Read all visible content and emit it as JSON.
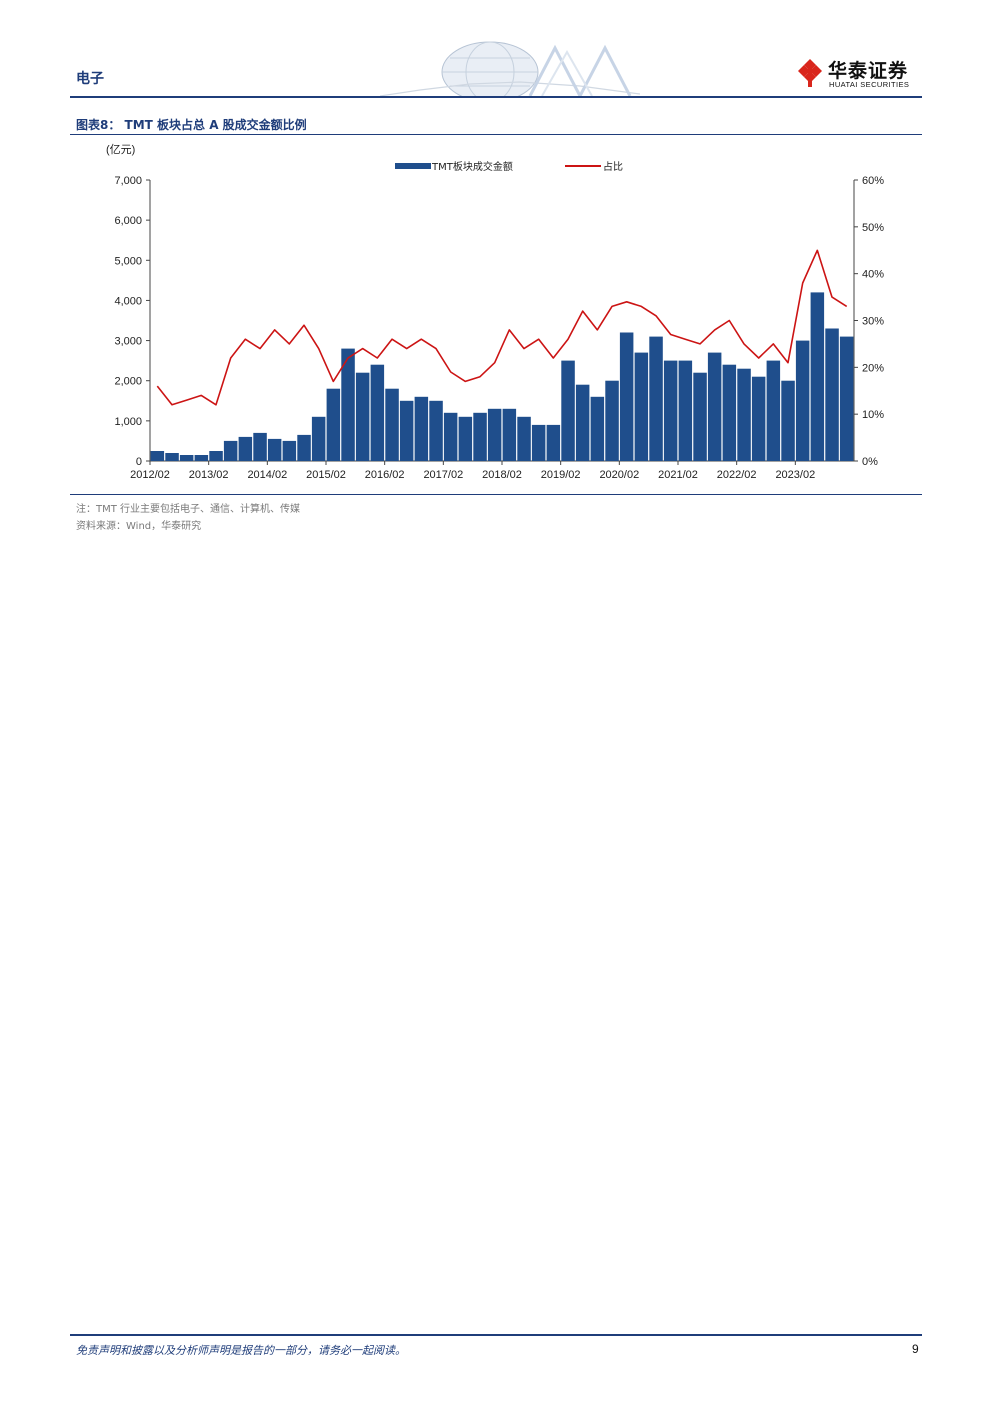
{
  "header": {
    "section": "电子",
    "brand_cn": "华泰证券",
    "brand_en": "HUATAI SECURITIES"
  },
  "figure": {
    "title": "图表8： TMT 板块占总 A 股成交金额比例",
    "note": "注：TMT 行业主要包括电子、通信、计算机、传媒",
    "source": "资料来源：Wind，华泰研究"
  },
  "chart_data": {
    "type": "bar+line",
    "y_unit": "(亿元)",
    "ylim": [
      0,
      7000
    ],
    "y2lim": [
      0,
      0.6
    ],
    "y_ticks": [
      "0",
      "1,000",
      "2,000",
      "3,000",
      "4,000",
      "5,000",
      "6,000",
      "7,000"
    ],
    "y2_ticks": [
      "0%",
      "10%",
      "20%",
      "30%",
      "40%",
      "50%",
      "60%"
    ],
    "x_ticks": [
      "2012/02",
      "2013/02",
      "2014/02",
      "2015/02",
      "2016/02",
      "2017/02",
      "2018/02",
      "2019/02",
      "2020/02",
      "2021/02",
      "2022/02",
      "2023/02"
    ],
    "legend_position": "top",
    "series": [
      {
        "name": "TMT板块成交金额",
        "kind": "bar",
        "axis": "left",
        "color": "#1f4e8c",
        "x": [
          "2012/02",
          "2012/05",
          "2012/08",
          "2012/11",
          "2013/02",
          "2013/05",
          "2013/08",
          "2013/11",
          "2014/02",
          "2014/05",
          "2014/08",
          "2014/11",
          "2015/02",
          "2015/05",
          "2015/08",
          "2015/11",
          "2016/02",
          "2016/05",
          "2016/08",
          "2016/11",
          "2017/02",
          "2017/05",
          "2017/08",
          "2017/11",
          "2018/02",
          "2018/05",
          "2018/08",
          "2018/11",
          "2019/02",
          "2019/05",
          "2019/08",
          "2019/11",
          "2020/02",
          "2020/05",
          "2020/08",
          "2020/11",
          "2021/02",
          "2021/05",
          "2021/08",
          "2021/11",
          "2022/02",
          "2022/05",
          "2022/08",
          "2022/11",
          "2023/02",
          "2023/05",
          "2023/08",
          "2023/11"
        ],
        "values": [
          250,
          200,
          150,
          150,
          250,
          500,
          600,
          700,
          550,
          500,
          650,
          1100,
          1800,
          2800,
          2200,
          2400,
          1800,
          1500,
          1600,
          1500,
          1200,
          1100,
          1200,
          1300,
          1300,
          1100,
          900,
          900,
          2500,
          1900,
          1600,
          2000,
          3200,
          2700,
          3100,
          2500,
          2500,
          2200,
          2700,
          2400,
          2300,
          2100,
          2500,
          2000,
          3000,
          4200,
          3300,
          3100
        ]
      },
      {
        "name": "占比",
        "kind": "line",
        "axis": "right",
        "color": "#cc1414",
        "x": [
          "2012/02",
          "2012/05",
          "2012/08",
          "2012/11",
          "2013/02",
          "2013/05",
          "2013/08",
          "2013/11",
          "2014/02",
          "2014/05",
          "2014/08",
          "2014/11",
          "2015/02",
          "2015/05",
          "2015/08",
          "2015/11",
          "2016/02",
          "2016/05",
          "2016/08",
          "2016/11",
          "2017/02",
          "2017/05",
          "2017/08",
          "2017/11",
          "2018/02",
          "2018/05",
          "2018/08",
          "2018/11",
          "2019/02",
          "2019/05",
          "2019/08",
          "2019/11",
          "2020/02",
          "2020/05",
          "2020/08",
          "2020/11",
          "2021/02",
          "2021/05",
          "2021/08",
          "2021/11",
          "2022/02",
          "2022/05",
          "2022/08",
          "2022/11",
          "2023/02",
          "2023/05",
          "2023/08",
          "2023/11"
        ],
        "values": [
          0.16,
          0.12,
          0.13,
          0.14,
          0.12,
          0.22,
          0.26,
          0.24,
          0.28,
          0.25,
          0.29,
          0.24,
          0.17,
          0.22,
          0.24,
          0.22,
          0.26,
          0.24,
          0.26,
          0.24,
          0.19,
          0.17,
          0.18,
          0.21,
          0.28,
          0.24,
          0.26,
          0.22,
          0.26,
          0.32,
          0.28,
          0.33,
          0.34,
          0.33,
          0.31,
          0.27,
          0.26,
          0.25,
          0.28,
          0.3,
          0.25,
          0.22,
          0.25,
          0.21,
          0.38,
          0.45,
          0.35,
          0.33
        ]
      }
    ]
  },
  "footer": {
    "disclaimer": "免责声明和披露以及分析师声明是报告的一部分，请务必一起阅读。",
    "page": "9"
  }
}
